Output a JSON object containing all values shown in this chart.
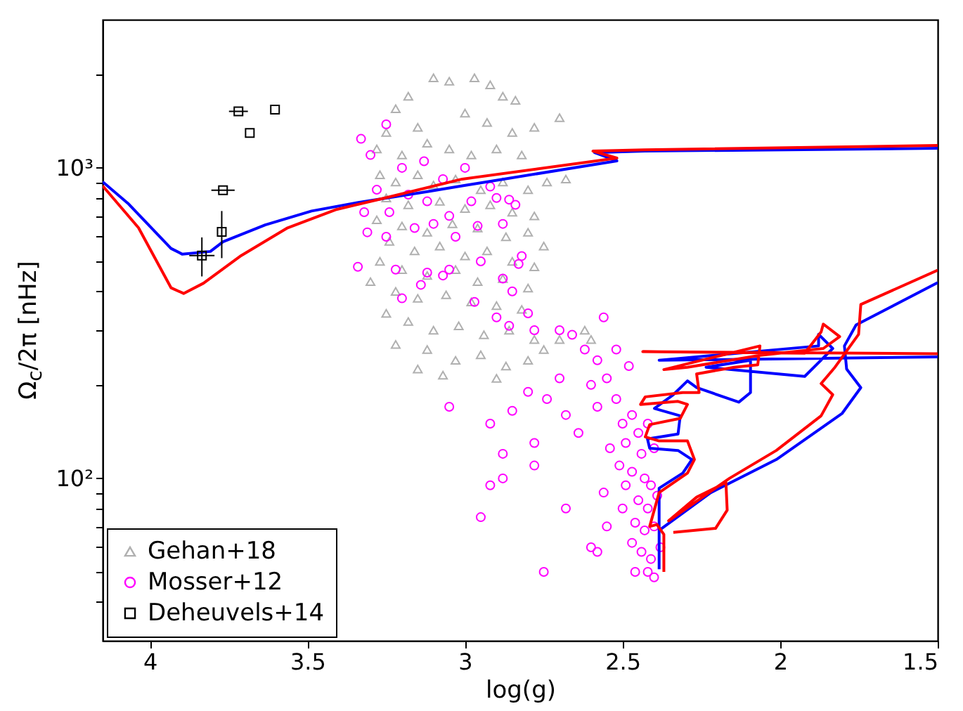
{
  "chart_data": {
    "type": "scatter",
    "xlabel": "log(g)",
    "ylabel": "Ω$_{c}$/2π [nHz]",
    "xlim": [
      4.15,
      1.5
    ],
    "xticks": [
      4,
      3.5,
      3,
      2.5,
      2,
      1.5
    ],
    "ylim": [
      30,
      3000
    ],
    "log": "y",
    "yticks": [
      {
        "value": 40,
        "label": null
      },
      {
        "value": 50,
        "label": null
      },
      {
        "value": 60,
        "label": null
      },
      {
        "value": 70,
        "label": null
      },
      {
        "value": 80,
        "label": null
      },
      {
        "value": 90,
        "label": null
      },
      {
        "value": 100,
        "label": "10²"
      },
      {
        "value": 200,
        "label": null
      },
      {
        "value": 300,
        "label": null
      },
      {
        "value": 400,
        "label": null
      },
      {
        "value": 500,
        "label": null
      },
      {
        "value": 600,
        "label": null
      },
      {
        "value": 700,
        "label": null
      },
      {
        "value": 800,
        "label": null
      },
      {
        "value": 900,
        "label": null
      },
      {
        "value": 1000,
        "label": "10³"
      },
      {
        "value": 2000,
        "label": null
      }
    ],
    "grid": false,
    "legend": "bottom left",
    "series": [
      {
        "name": "Gehan+18",
        "marker": "triangle",
        "color": "#b0b0b0",
        "x": [
          3.1,
          3.05,
          2.97,
          2.92,
          3.18,
          3.22,
          2.88,
          2.84,
          2.7,
          3.25,
          3.15,
          3.0,
          2.93,
          2.85,
          2.78,
          3.28,
          3.2,
          3.12,
          3.05,
          2.98,
          2.9,
          2.82,
          2.74,
          2.68,
          3.27,
          3.22,
          3.15,
          3.1,
          3.03,
          2.95,
          2.88,
          2.8,
          3.25,
          3.18,
          3.08,
          3.0,
          2.92,
          2.85,
          2.78,
          3.28,
          3.2,
          3.12,
          3.04,
          2.96,
          2.87,
          2.8,
          2.75,
          3.24,
          3.16,
          3.08,
          3.0,
          2.93,
          2.85,
          2.78,
          3.27,
          3.2,
          3.12,
          3.03,
          2.96,
          2.88,
          2.8,
          3.3,
          3.22,
          3.15,
          3.06,
          2.98,
          2.9,
          2.82,
          3.25,
          3.18,
          3.1,
          3.02,
          2.94,
          2.86,
          2.78,
          3.22,
          3.12,
          3.03,
          2.95,
          2.87,
          2.8,
          3.15,
          3.07,
          2.9,
          2.75,
          2.7,
          2.62,
          2.6
        ],
        "values": [
          1950,
          1900,
          1950,
          1850,
          1700,
          1550,
          1700,
          1650,
          1450,
          1300,
          1350,
          1500,
          1400,
          1300,
          1350,
          1150,
          1100,
          1200,
          1150,
          1100,
          1150,
          1100,
          900,
          920,
          950,
          900,
          950,
          880,
          920,
          850,
          900,
          850,
          800,
          760,
          780,
          740,
          760,
          720,
          700,
          680,
          650,
          620,
          660,
          640,
          600,
          620,
          560,
          580,
          540,
          560,
          520,
          540,
          500,
          480,
          500,
          470,
          450,
          470,
          430,
          440,
          410,
          430,
          400,
          380,
          390,
          370,
          360,
          350,
          340,
          320,
          300,
          310,
          290,
          300,
          280,
          270,
          260,
          240,
          250,
          230,
          240,
          225,
          215,
          210,
          260,
          280,
          300,
          280
        ]
      },
      {
        "name": "Mosser+12",
        "marker": "circle",
        "color": "#ff00ff",
        "x": [
          3.33,
          3.25,
          3.3,
          3.28,
          3.2,
          3.13,
          3.07,
          3.0,
          2.92,
          2.86,
          3.32,
          3.24,
          3.18,
          3.12,
          3.05,
          2.98,
          2.9,
          2.84,
          3.31,
          3.25,
          3.16,
          3.1,
          3.03,
          2.96,
          2.88,
          3.34,
          3.22,
          3.12,
          3.05,
          2.95,
          2.83,
          3.14,
          3.07,
          2.88,
          2.82,
          3.2,
          2.97,
          2.85,
          2.8,
          2.9,
          2.86,
          2.78,
          3.05,
          2.7,
          2.66,
          2.56,
          2.62,
          2.58,
          2.52,
          2.55,
          2.48,
          2.6,
          2.7,
          2.74,
          2.8,
          2.85,
          2.92,
          2.88,
          2.78,
          2.68,
          2.64,
          2.58,
          2.52,
          2.5,
          2.47,
          2.54,
          2.49,
          2.45,
          2.42,
          2.44,
          2.4,
          2.51,
          2.47,
          2.43,
          2.41,
          2.49,
          2.45,
          2.42,
          2.39,
          2.5,
          2.46,
          2.43,
          2.4,
          2.47,
          2.44,
          2.41,
          2.38,
          2.46,
          2.42,
          2.4,
          2.92,
          2.95,
          2.68,
          2.6,
          2.58,
          2.75,
          2.88,
          2.78,
          2.56,
          2.55
        ],
        "values": [
          1240,
          1380,
          1100,
          850,
          1000,
          1050,
          920,
          1000,
          870,
          790,
          720,
          720,
          820,
          780,
          700,
          780,
          800,
          760,
          620,
          600,
          640,
          660,
          600,
          650,
          660,
          480,
          470,
          460,
          470,
          500,
          490,
          420,
          450,
          440,
          520,
          380,
          370,
          400,
          340,
          330,
          310,
          300,
          170,
          300,
          290,
          330,
          260,
          240,
          260,
          210,
          230,
          200,
          210,
          180,
          190,
          165,
          150,
          120,
          130,
          160,
          140,
          170,
          180,
          150,
          160,
          125,
          130,
          140,
          150,
          120,
          125,
          110,
          105,
          100,
          95,
          95,
          85,
          80,
          88,
          80,
          72,
          68,
          70,
          62,
          58,
          55,
          60,
          50,
          50,
          48,
          95,
          75,
          80,
          60,
          58,
          50,
          100,
          110,
          90,
          70
        ]
      },
      {
        "type": "line",
        "color": "#0000ff",
        "x": [
          4.15,
          4.067,
          3.933,
          3.897,
          3.808,
          3.768,
          3.634,
          3.487,
          3.339,
          3.116,
          3.009,
          2.518,
          2.589,
          2.429,
          1.5
        ],
        "values": [
          902,
          764,
          550,
          527,
          538,
          578,
          655,
          726,
          773,
          839,
          875,
          1053,
          1120,
          1132,
          1156
        ]
      },
      {
        "type": "line",
        "color": "#0000ff",
        "x": [
          2.384,
          2.384,
          2.309,
          2.28,
          2.324,
          2.414,
          2.421,
          2.324,
          2.317,
          2.399,
          2.339,
          2.294,
          2.265,
          2.131,
          2.094,
          2.094,
          2.235,
          1.922,
          1.878,
          1.833,
          1.878,
          1.878,
          2.384,
          1.5
        ],
        "values": [
          51,
          93,
          104,
          115,
          123,
          125,
          134,
          139,
          159,
          168,
          186,
          206,
          196,
          176,
          189,
          240,
          228,
          213,
          236,
          262,
          291,
          267,
          240,
          246
        ]
      },
      {
        "type": "line",
        "color": "#0000ff",
        "x": [
          2.384,
          2.22,
          2.012,
          1.803,
          1.744,
          1.789,
          1.796,
          1.759,
          1.5
        ],
        "values": [
          68,
          90,
          115,
          162,
          196,
          225,
          267,
          312,
          427
        ]
      },
      {
        "type": "line",
        "color": "#ff0000",
        "x": [
          4.15,
          4.036,
          3.933,
          3.893,
          3.83,
          3.71,
          3.563,
          3.411,
          3.263,
          3.009,
          2.518,
          2.594,
          2.429,
          1.5
        ],
        "values": [
          875,
          641,
          411,
          394,
          425,
          522,
          641,
          733,
          796,
          920,
          1075,
          1132,
          1143,
          1180
        ]
      },
      {
        "type": "line",
        "color": "#ff0000",
        "x": [
          2.369,
          2.369,
          2.391,
          2.414,
          2.384,
          2.294,
          2.272,
          2.294,
          2.384,
          2.428,
          2.414,
          2.317,
          2.294,
          2.324,
          2.443,
          2.428,
          2.309,
          2.257,
          2.265,
          2.146,
          2.071,
          2.064,
          2.25,
          2.369,
          2.294,
          2.064,
          1.863,
          1.811,
          1.863,
          1.87,
          1.922,
          2.436,
          1.5
        ],
        "values": [
          50,
          66,
          71,
          70,
          90,
          104,
          115,
          132,
          132,
          136,
          149,
          156,
          173,
          177,
          173,
          183,
          189,
          189,
          217,
          228,
          232,
          267,
          240,
          224,
          228,
          249,
          262,
          286,
          314,
          296,
          253,
          256,
          252
        ]
      },
      {
        "type": "line",
        "color": "#ff0000",
        "x": [
          2.339,
          2.205,
          2.168,
          2.172,
          2.265,
          2.354,
          2.161,
          2.012,
          1.87,
          1.833,
          1.87,
          1.826,
          1.751,
          1.744,
          1.5
        ],
        "values": [
          67,
          69,
          79,
          97,
          87,
          73,
          100,
          123,
          159,
          186,
          202,
          228,
          291,
          363,
          468
        ]
      },
      {
        "name": "Deheuvels+14",
        "marker": "square",
        "color": "#000000",
        "x": [
          3.719,
          3.603,
          3.683,
          3.768,
          3.772,
          3.835
        ],
        "values": [
          1520,
          1540,
          1295,
          847,
          622,
          522
        ],
        "xerrors": [
          0.03,
          null,
          null,
          0.037,
          null,
          0.04
        ],
        "errors": [
          null,
          null,
          null,
          null,
          [
            512,
            726
          ],
          [
            447,
            597
          ]
        ]
      }
    ]
  }
}
